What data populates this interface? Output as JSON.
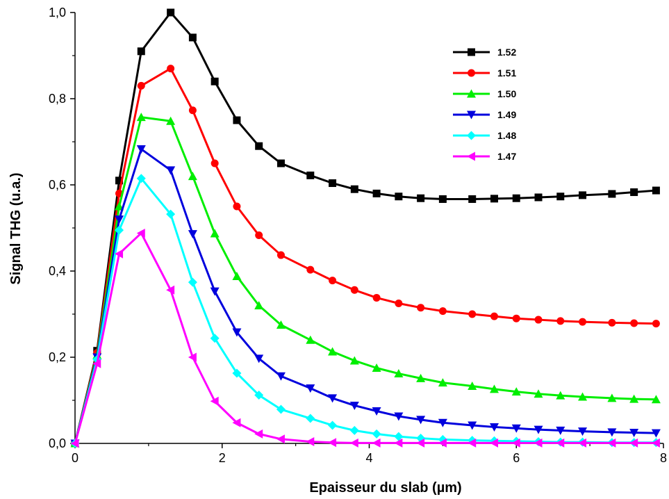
{
  "chart_data": {
    "type": "line",
    "title": "",
    "xlabel": "Epaisseur du slab (µm)",
    "ylabel": "Signal THG (u.a.)",
    "xlim": [
      0,
      8
    ],
    "ylim": [
      0,
      1.0
    ],
    "xticks": [
      "0",
      "2",
      "4",
      "6",
      "8"
    ],
    "xtick_values": [
      0,
      2,
      4,
      6,
      8
    ],
    "yticks": [
      "0,0",
      "0,2",
      "0,4",
      "0,6",
      "0,8",
      "1,0"
    ],
    "ytick_values": [
      0,
      0.2,
      0.4,
      0.6,
      0.8,
      1.0
    ],
    "grid": false,
    "legend_position": "top-right",
    "x": [
      0,
      0.3,
      0.6,
      0.9,
      1.3,
      1.6,
      1.9,
      2.2,
      2.5,
      2.8,
      3.2,
      3.5,
      3.8,
      4.1,
      4.4,
      4.7,
      5.0,
      5.4,
      5.7,
      6.0,
      6.3,
      6.6,
      6.9,
      7.3,
      7.6,
      7.9
    ],
    "series": [
      {
        "name": "1.52",
        "color": "#000000",
        "marker": "square",
        "values": [
          0,
          0.215,
          0.61,
          0.91,
          1.0,
          0.942,
          0.84,
          0.75,
          0.69,
          0.65,
          0.622,
          0.604,
          0.59,
          0.58,
          0.573,
          0.569,
          0.567,
          0.567,
          0.568,
          0.569,
          0.571,
          0.573,
          0.576,
          0.579,
          0.583,
          0.587
        ]
      },
      {
        "name": "1.51",
        "color": "#ff0000",
        "marker": "circle",
        "values": [
          0,
          0.21,
          0.58,
          0.83,
          0.87,
          0.773,
          0.65,
          0.55,
          0.483,
          0.437,
          0.403,
          0.378,
          0.356,
          0.338,
          0.325,
          0.315,
          0.307,
          0.3,
          0.295,
          0.29,
          0.287,
          0.284,
          0.282,
          0.28,
          0.279,
          0.278
        ]
      },
      {
        "name": "1.50",
        "color": "#00ee00",
        "marker": "triangle-up",
        "values": [
          0,
          0.205,
          0.55,
          0.757,
          0.748,
          0.62,
          0.487,
          0.388,
          0.32,
          0.275,
          0.24,
          0.213,
          0.192,
          0.175,
          0.162,
          0.151,
          0.141,
          0.133,
          0.126,
          0.12,
          0.115,
          0.111,
          0.108,
          0.105,
          0.103,
          0.102
        ]
      },
      {
        "name": "1.49",
        "color": "#0000dd",
        "marker": "triangle-down",
        "values": [
          0,
          0.2,
          0.52,
          0.683,
          0.634,
          0.486,
          0.353,
          0.258,
          0.197,
          0.156,
          0.128,
          0.105,
          0.088,
          0.075,
          0.063,
          0.055,
          0.048,
          0.042,
          0.038,
          0.035,
          0.032,
          0.03,
          0.028,
          0.026,
          0.025,
          0.024
        ]
      },
      {
        "name": "1.48",
        "color": "#00ffff",
        "marker": "diamond",
        "values": [
          0,
          0.195,
          0.495,
          0.615,
          0.532,
          0.374,
          0.244,
          0.163,
          0.112,
          0.079,
          0.058,
          0.042,
          0.03,
          0.022,
          0.016,
          0.012,
          0.009,
          0.007,
          0.006,
          0.005,
          0.004,
          0.003,
          0.003,
          0.002,
          0.002,
          0.002
        ]
      },
      {
        "name": "1.47",
        "color": "#ff00ff",
        "marker": "triangle-left",
        "values": [
          0,
          0.185,
          0.44,
          0.488,
          0.356,
          0.2,
          0.098,
          0.048,
          0.022,
          0.01,
          0.004,
          0.002,
          0.001,
          0.001,
          0.001,
          0.001,
          0.001,
          0.001,
          0.001,
          0.001,
          0.001,
          0.001,
          0.001,
          0.001,
          0.001,
          0.001
        ]
      }
    ]
  }
}
